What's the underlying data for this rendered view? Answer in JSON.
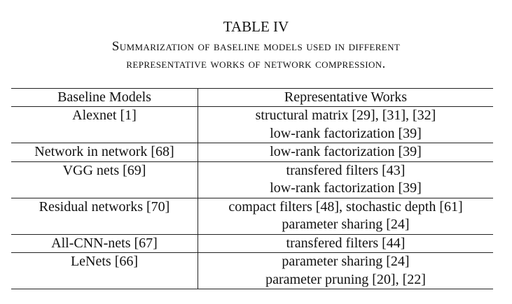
{
  "table": {
    "number": "TABLE IV",
    "caption_line1": "Summarization of baseline models used in different",
    "caption_line2": "representative works of network compression.",
    "headers": [
      "Baseline Models",
      "Representative Works"
    ],
    "rows": [
      {
        "model": "Alexnet [1]",
        "works": [
          "structural matrix [29], [31], [32]",
          "low-rank factorization [39]"
        ]
      },
      {
        "model": "Network in network [68]",
        "works": [
          "low-rank factorization [39]"
        ]
      },
      {
        "model": "VGG nets [69]",
        "works": [
          "transfered filters [43]",
          "low-rank factorization [39]"
        ]
      },
      {
        "model": "Residual networks [70]",
        "works": [
          "compact filters [48], stochastic depth [61]",
          "parameter sharing [24]"
        ]
      },
      {
        "model": "All-CNN-nets [67]",
        "works": [
          "transfered filters [44]"
        ]
      },
      {
        "model": "LeNets [66]",
        "works": [
          "parameter sharing [24]",
          "parameter pruning [20], [22]"
        ]
      }
    ]
  }
}
